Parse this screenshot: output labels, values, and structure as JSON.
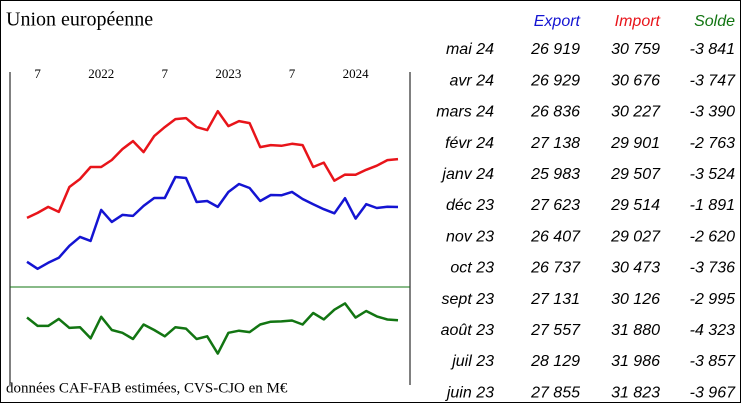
{
  "chart_data": {
    "type": "line",
    "title": "Union européenne",
    "footnote": "données CAF-FAB estimées, CVS-CJO en M€",
    "x": [
      "2021-06",
      "2021-07",
      "2021-08",
      "2021-09",
      "2021-10",
      "2021-11",
      "2021-12",
      "2022-01",
      "2022-02",
      "2022-03",
      "2022-04",
      "2022-05",
      "2022-06",
      "2022-07",
      "2022-08",
      "2022-09",
      "2022-10",
      "2022-11",
      "2022-12",
      "2023-01",
      "2023-02",
      "2023-03",
      "2023-04",
      "2023-05",
      "2023-06",
      "2023-07",
      "2023-08",
      "2023-09",
      "2023-10",
      "2023-11",
      "2023-12",
      "2024-01",
      "2024-02",
      "2024-03",
      "2024-04",
      "2024-05"
    ],
    "xticks": [
      {
        "value": "2021-07",
        "label": "7"
      },
      {
        "value": "2022-01",
        "label": "2022"
      },
      {
        "value": "2022-07",
        "label": "7"
      },
      {
        "value": "2023-01",
        "label": "2023"
      },
      {
        "value": "2023-07",
        "label": "7"
      },
      {
        "value": "2024-01",
        "label": "2024"
      }
    ],
    "ylim": [
      20500,
      37500
    ],
    "y2lim": [
      -11300,
      0
    ],
    "series": [
      {
        "name": "Export",
        "color": "#1414d2",
        "values": [
          22520,
          21960,
          22440,
          22840,
          23800,
          24520,
          24200,
          26680,
          25720,
          26280,
          26200,
          27000,
          27640,
          27640,
          29320,
          29240,
          27320,
          27400,
          26920,
          28120,
          28760,
          28440,
          27400,
          27880,
          27855,
          28129,
          27557,
          27131,
          26737,
          26407,
          27623,
          25983,
          27138,
          26836,
          26929,
          26919
        ]
      },
      {
        "name": "Import",
        "color": "#e8141a",
        "values": [
          26040,
          26440,
          26920,
          26520,
          28520,
          29160,
          30120,
          30120,
          30680,
          31560,
          32200,
          31320,
          32600,
          33320,
          33960,
          34040,
          33320,
          33080,
          34600,
          33400,
          33800,
          33640,
          31720,
          31880,
          31823,
          31986,
          31880,
          30126,
          30473,
          29027,
          29514,
          29507,
          29901,
          30227,
          30676,
          30759
        ]
      },
      {
        "name": "Solde",
        "color": "#127512",
        "axis": "y2",
        "values": [
          -3520,
          -4480,
          -4480,
          -3680,
          -4720,
          -4640,
          -5920,
          -3440,
          -4960,
          -5280,
          -6000,
          -4320,
          -4960,
          -5680,
          -4640,
          -4800,
          -6000,
          -5680,
          -7680,
          -5280,
          -5040,
          -5200,
          -4320,
          -4000,
          -3967,
          -3857,
          -4323,
          -2995,
          -3736,
          -2620,
          -1891,
          -3524,
          -2763,
          -3390,
          -3747,
          -3841
        ]
      }
    ]
  },
  "table": {
    "rows": [
      [
        "mai 24",
        "26 919",
        "30 759",
        "-3 841"
      ],
      [
        "avr 24",
        "26 929",
        "30 676",
        "-3 747"
      ],
      [
        "mars 24",
        "26 836",
        "30 227",
        "-3 390"
      ],
      [
        "févr 24",
        "27 138",
        "29 901",
        "-2 763"
      ],
      [
        "janv 24",
        "25 983",
        "29 507",
        "-3 524"
      ],
      [
        "déc 23",
        "27 623",
        "29 514",
        "-1 891"
      ],
      [
        "nov 23",
        "26 407",
        "29 027",
        "-2 620"
      ],
      [
        "oct 23",
        "26 737",
        "30 473",
        "-3 736"
      ],
      [
        "sept 23",
        "27 131",
        "30 126",
        "-2 995"
      ],
      [
        "août 23",
        "27 557",
        "31 880",
        "-4 323"
      ],
      [
        "juil 23",
        "28 129",
        "31 986",
        "-3 857"
      ],
      [
        "juin 23",
        "27 855",
        "31 823",
        "-3 967"
      ]
    ]
  }
}
